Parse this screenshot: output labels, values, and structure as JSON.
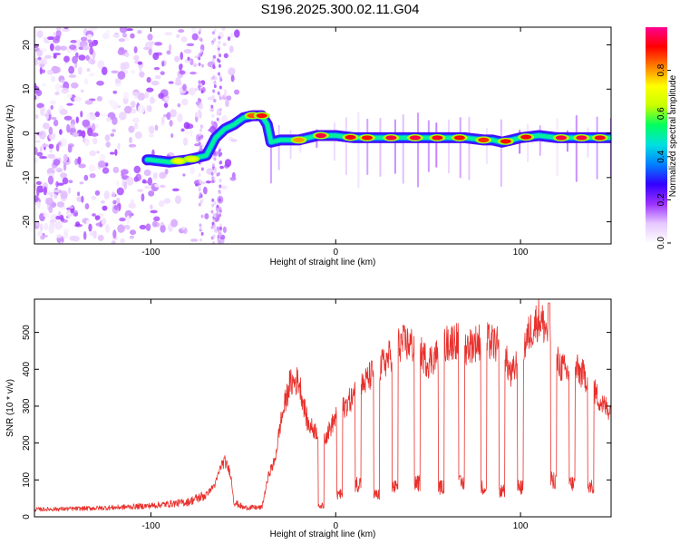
{
  "figure_title": "S196.2025.300.02.11.G04",
  "chart_data": [
    {
      "type": "heatmap",
      "name": "spectrogram",
      "xlabel": "Height of straight line (km)",
      "ylabel": "Frequency (Hz)",
      "xlim": [
        -163,
        149
      ],
      "ylim": [
        -25,
        24
      ],
      "xticks": [
        -100,
        0,
        100
      ],
      "yticks": [
        -20,
        -10,
        0,
        10,
        20
      ],
      "colorbar": {
        "label": "Normalized spectral amplitude",
        "range": [
          0,
          1
        ],
        "ticks": [
          0.0,
          0.2,
          0.4,
          0.6,
          0.8
        ],
        "colormap": [
          "#ffffff",
          "#e6c7ff",
          "#9b30ff",
          "#3300ff",
          "#0080ff",
          "#00e0e0",
          "#00ff60",
          "#c8ff00",
          "#ffff00",
          "#ff8000",
          "#ff0000",
          "#ff0090"
        ]
      },
      "ridge": {
        "description": "frequency of peak spectral amplitude versus height",
        "x": [
          -100,
          -90,
          -80,
          -70,
          -65,
          -60,
          -55,
          -50,
          -45,
          -40,
          -37,
          -35,
          -30,
          -20,
          -10,
          0,
          10,
          20,
          30,
          40,
          50,
          60,
          70,
          80,
          85,
          90,
          100,
          110,
          120,
          130,
          140,
          148
        ],
        "y": [
          -6,
          -6.5,
          -6,
          -5,
          -1,
          1,
          2,
          3.5,
          4,
          4,
          2,
          -2,
          -1.5,
          -1.5,
          -0.5,
          -0.5,
          -1,
          -1,
          -1,
          -1,
          -1,
          -1,
          -1,
          -1.5,
          -1.5,
          -2,
          -1,
          -0.5,
          -1,
          -1,
          -1,
          -1
        ]
      }
    },
    {
      "type": "line",
      "name": "snr",
      "xlabel": "Height of straight line (km)",
      "ylabel": "SNR (10 * v/v)",
      "xlim": [
        -163,
        149
      ],
      "ylim": [
        0,
        590
      ],
      "xticks": [
        -100,
        0,
        100
      ],
      "yticks": [
        0,
        100,
        200,
        300,
        400,
        500
      ],
      "color": "#e8302c",
      "envelope": {
        "x": [
          -163,
          -140,
          -120,
          -100,
          -80,
          -70,
          -65,
          -62,
          -60,
          -57,
          -55,
          -50,
          -45,
          -40,
          -36,
          -33,
          -30,
          -25,
          -20,
          -15,
          -10,
          -5,
          0,
          5,
          10,
          20,
          25,
          30,
          35,
          40,
          45,
          50,
          55,
          60,
          65,
          70,
          75,
          80,
          85,
          90,
          95,
          100,
          105,
          110,
          115,
          120,
          125,
          130,
          135,
          140,
          145,
          149
        ],
        "y": [
          20,
          22,
          25,
          30,
          40,
          60,
          90,
          140,
          150,
          120,
          40,
          25,
          25,
          25,
          120,
          150,
          250,
          360,
          370,
          250,
          230,
          220,
          270,
          300,
          330,
          390,
          410,
          440,
          470,
          470,
          450,
          420,
          440,
          470,
          480,
          460,
          470,
          480,
          470,
          460,
          380,
          440,
          500,
          540,
          500,
          420,
          390,
          400,
          380,
          340,
          300,
          290
        ]
      },
      "dropouts": {
        "x": [
          -8,
          2,
          12,
          22,
          32,
          44,
          57,
          68,
          80,
          90,
          100,
          118,
          128,
          138
        ],
        "y": [
          30,
          60,
          90,
          60,
          80,
          90,
          80,
          90,
          80,
          70,
          80,
          100,
          90,
          80
        ]
      }
    }
  ]
}
